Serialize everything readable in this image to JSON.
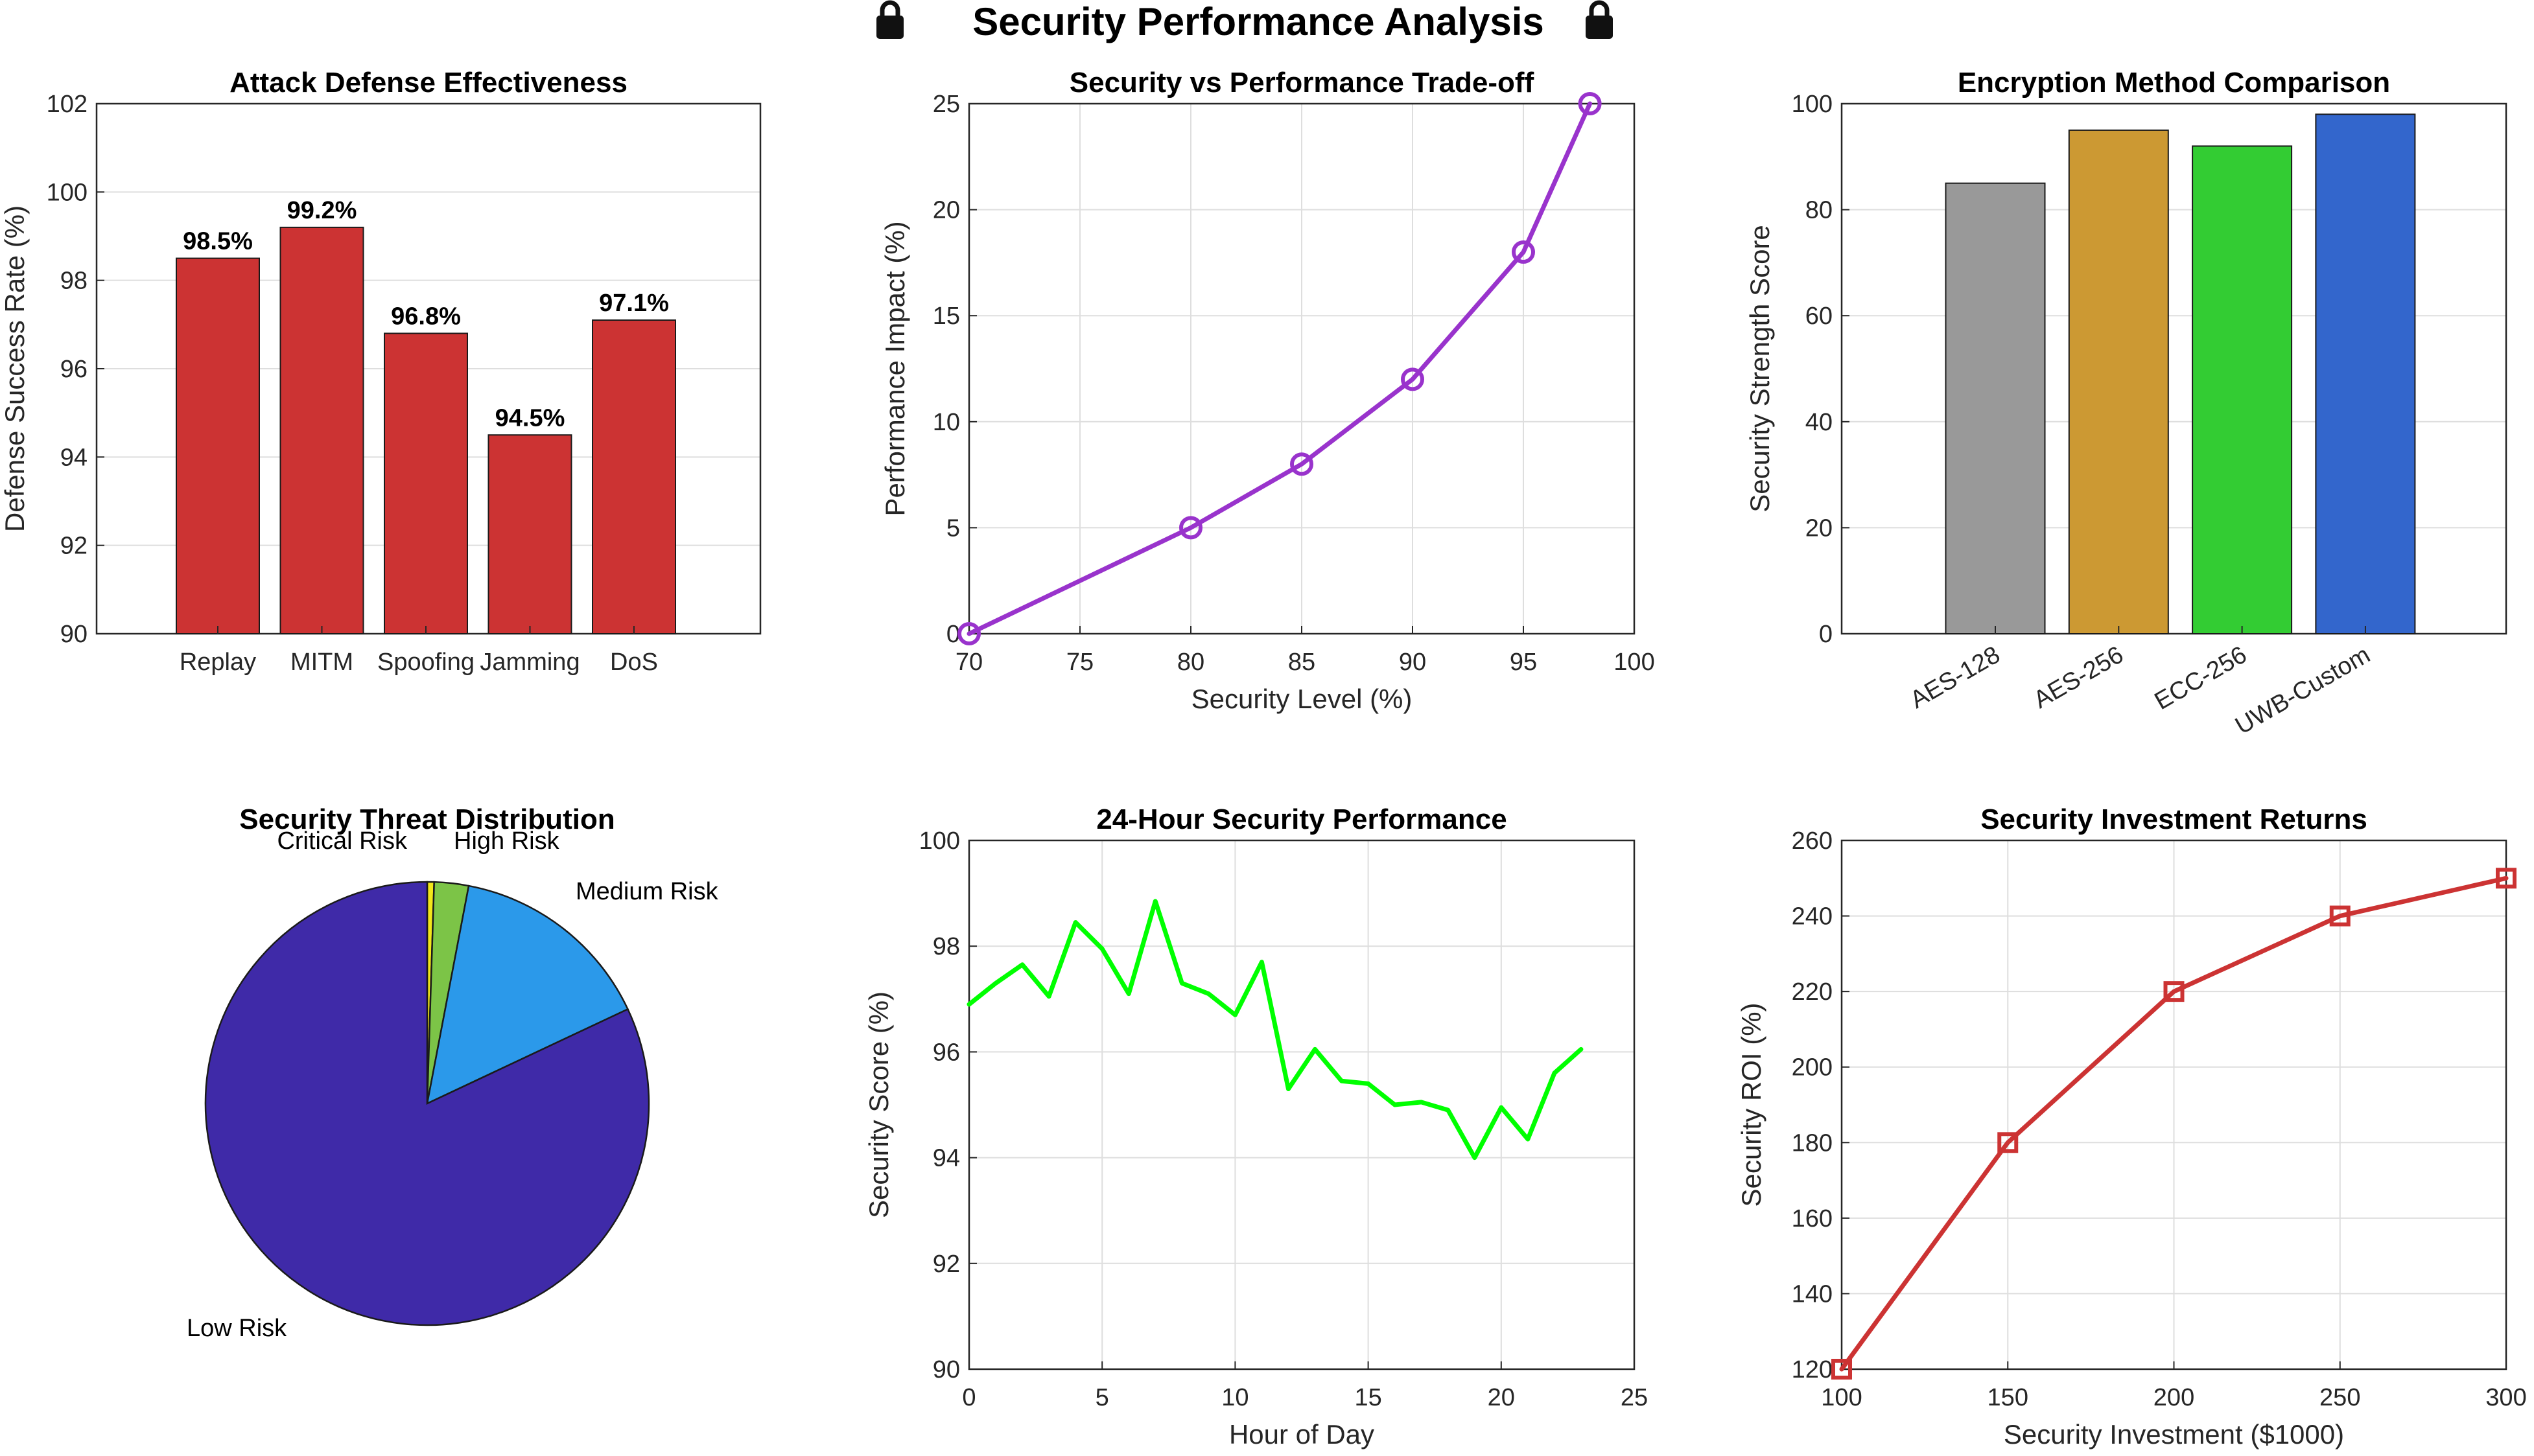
{
  "suptitle": "Security Performance Analysis",
  "icons": {
    "title_left": "lock-icon",
    "title_right": "lock-icon"
  },
  "chart_data": [
    {
      "id": "attack_defense",
      "type": "bar",
      "title": "Attack Defense Effectiveness",
      "xlabel": "",
      "ylabel": "Defense Success Rate (%)",
      "categories": [
        "Replay",
        "MITM",
        "Spoofing",
        "Jamming",
        "DoS"
      ],
      "values": [
        98.5,
        99.2,
        96.8,
        94.5,
        97.1
      ],
      "data_labels": [
        "98.5%",
        "99.2%",
        "96.8%",
        "94.5%",
        "97.1%"
      ],
      "ylim": [
        90,
        102
      ],
      "yticks": [
        90,
        92,
        94,
        96,
        98,
        100,
        102
      ],
      "color": "#cc3333",
      "grid": true
    },
    {
      "id": "tradeoff",
      "type": "line",
      "title": "Security vs Performance Trade-off",
      "xlabel": "Security Level (%)",
      "ylabel": "Performance Impact (%)",
      "x": [
        70,
        80,
        85,
        90,
        95,
        98
      ],
      "y": [
        0,
        5,
        8,
        12,
        18,
        25
      ],
      "xlim": [
        70,
        100
      ],
      "ylim": [
        0,
        25
      ],
      "xticks": [
        70,
        75,
        80,
        85,
        90,
        95,
        100
      ],
      "yticks": [
        0,
        5,
        10,
        15,
        20,
        25
      ],
      "marker": "circle",
      "color": "#9933cc",
      "grid": true
    },
    {
      "id": "encryption",
      "type": "bar",
      "title": "Encryption Method Comparison",
      "xlabel": "",
      "ylabel": "Security Strength Score",
      "categories": [
        "AES-128",
        "AES-256",
        "ECC-256",
        "UWB-Custom"
      ],
      "values": [
        85,
        95,
        92,
        98
      ],
      "colors": [
        "#999999",
        "#cc9933",
        "#33cc33",
        "#3366cc"
      ],
      "ylim": [
        0,
        100
      ],
      "yticks": [
        0,
        20,
        40,
        60,
        80,
        100
      ],
      "grid": true
    },
    {
      "id": "threats",
      "type": "pie",
      "title": "Security Threat Distribution",
      "labels": [
        "Critical Risk",
        "High Risk",
        "Medium Risk",
        "Low Risk"
      ],
      "values": [
        0.5,
        2.5,
        15,
        82
      ],
      "colors": [
        "#f2e61a",
        "#7cc447",
        "#2b99ea",
        "#3f2aa8"
      ]
    },
    {
      "id": "hourly",
      "type": "line",
      "title": "24-Hour Security Performance",
      "xlabel": "Hour of Day",
      "ylabel": "Security Score (%)",
      "x": [
        0,
        1,
        2,
        3,
        4,
        5,
        6,
        7,
        8,
        9,
        10,
        11,
        12,
        13,
        14,
        15,
        16,
        17,
        18,
        19,
        20,
        21,
        22,
        23
      ],
      "y": [
        96.9,
        97.3,
        97.65,
        97.05,
        98.45,
        97.95,
        97.1,
        98.85,
        97.3,
        97.1,
        96.7,
        97.7,
        95.3,
        96.05,
        95.45,
        95.4,
        95.0,
        95.05,
        94.9,
        94.0,
        94.95,
        94.35,
        95.6,
        96.05
      ],
      "xlim": [
        0,
        25
      ],
      "ylim": [
        90,
        100
      ],
      "xticks": [
        0,
        5,
        10,
        15,
        20,
        25
      ],
      "yticks": [
        90,
        92,
        94,
        96,
        98,
        100
      ],
      "color": "#00ff00",
      "grid": true
    },
    {
      "id": "roi",
      "type": "line",
      "title": "Security Investment Returns",
      "xlabel": "Security Investment ($1000)",
      "ylabel": "Security ROI (%)",
      "x": [
        100,
        150,
        200,
        250,
        300
      ],
      "y": [
        120,
        180,
        220,
        240,
        250
      ],
      "xlim": [
        100,
        300
      ],
      "ylim": [
        120,
        260
      ],
      "xticks": [
        100,
        150,
        200,
        250,
        300
      ],
      "yticks": [
        120,
        140,
        160,
        180,
        200,
        220,
        240,
        260
      ],
      "marker": "square",
      "color": "#cc3333",
      "grid": true
    }
  ]
}
